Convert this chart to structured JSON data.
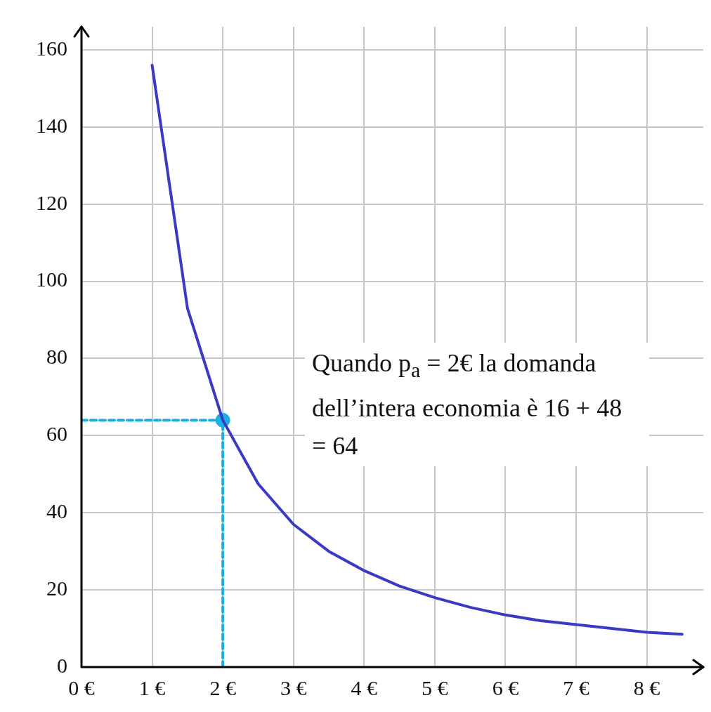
{
  "chart_data": {
    "type": "line",
    "annotations": [
      "Quando p$_{a}$ = 2€ la domanda dell’intera economia è 16 + 48 = 64"
    ],
    "series": [
      {
        "type": "line",
        "color": "#3a3ac4",
        "x": [
          1,
          1.5,
          2,
          2.5,
          3,
          3.5,
          4,
          4.5,
          5,
          5.5,
          6,
          6.5,
          7,
          7.5,
          8,
          8.5
        ],
        "values": [
          156,
          93,
          64,
          47.5,
          37,
          30,
          25,
          21,
          18,
          15.5,
          13.5,
          12,
          11,
          10,
          9,
          8.5
        ]
      },
      {
        "type": "line",
        "color": "#1ab0e8",
        "line_style": "dashed",
        "x": [
          0,
          2
        ],
        "values": [
          64,
          64
        ]
      },
      {
        "type": "line",
        "color": "#1ab0e8",
        "line_style": "dashed",
        "x": [
          2,
          2
        ],
        "values": [
          0,
          64
        ]
      },
      {
        "type": "scatter",
        "color": "#1ab0e8",
        "marker": "circle",
        "x": [
          2
        ],
        "values": [
          64
        ]
      }
    ],
    "xlim": [
      0,
      8.8
    ],
    "xticks": [
      {
        "value": 0,
        "label": "0 €"
      },
      {
        "value": 1,
        "label": "1 €"
      },
      {
        "value": 2,
        "label": "2 €"
      },
      {
        "value": 3,
        "label": "3 €"
      },
      {
        "value": 4,
        "label": "4 €"
      },
      {
        "value": 5,
        "label": "5 €"
      },
      {
        "value": 6,
        "label": "6 €"
      },
      {
        "value": 7,
        "label": "7 €"
      },
      {
        "value": 8,
        "label": "8 €"
      }
    ],
    "ylim": [
      0,
      166
    ],
    "yticks": [
      0,
      20,
      40,
      60,
      80,
      100,
      120,
      140,
      160
    ],
    "grid": true,
    "legend": false,
    "marker": "none"
  }
}
